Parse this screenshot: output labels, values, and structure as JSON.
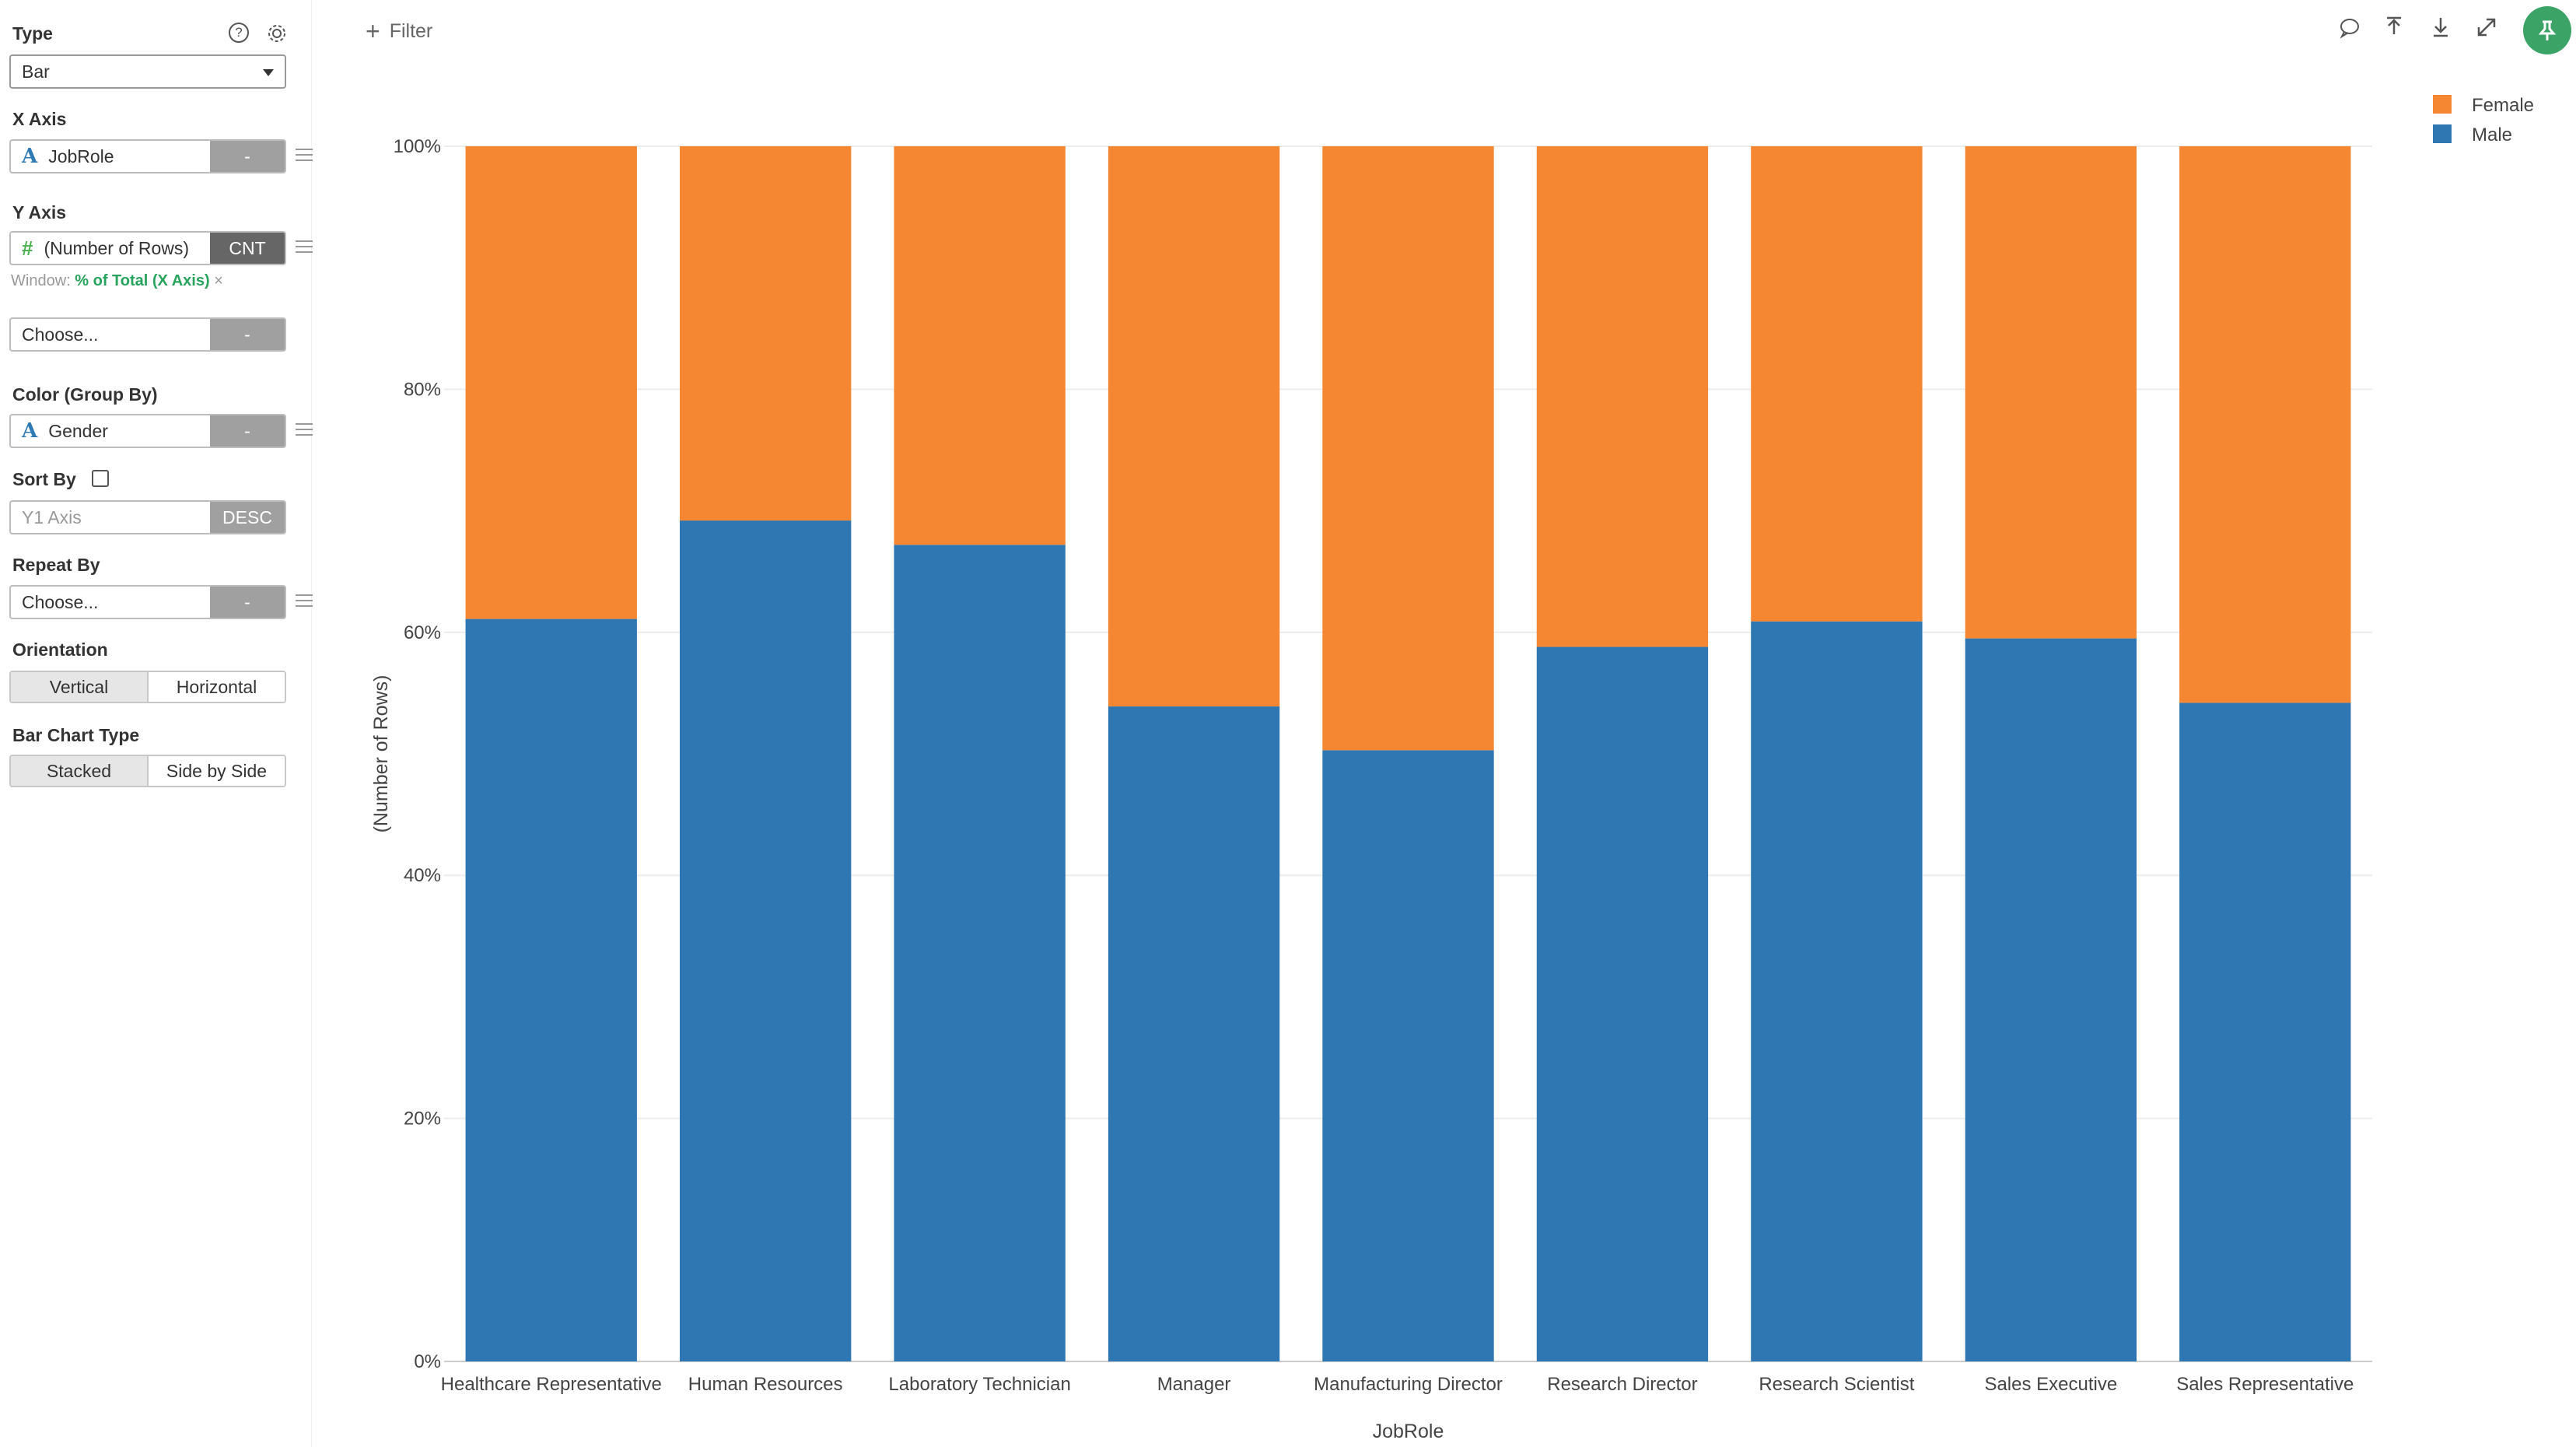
{
  "sidebar": {
    "type_label": "Type",
    "type_value": "Bar",
    "help_icon": "?",
    "x_axis_label": "X Axis",
    "x_axis_value": "JobRole",
    "x_axis_agg": "-",
    "y_axis_label": "Y Axis",
    "y_axis_value": "(Number of Rows)",
    "y_axis_agg": "CNT",
    "window_prefix": "Window:",
    "window_value": "% of Total (X Axis)",
    "window_close": "×",
    "y2_placeholder": "Choose...",
    "y2_agg": "-",
    "color_label": "Color (Group By)",
    "color_value": "Gender",
    "color_agg": "-",
    "sort_label": "Sort By",
    "sort_placeholder": "Y1 Axis",
    "sort_order": "DESC",
    "repeat_label": "Repeat By",
    "repeat_placeholder": "Choose...",
    "repeat_agg": "-",
    "orientation_label": "Orientation",
    "orientation_options": [
      "Vertical",
      "Horizontal"
    ],
    "bar_type_label": "Bar Chart Type",
    "bar_type_options": [
      "Stacked",
      "Side by Side"
    ]
  },
  "header": {
    "filter_plus": "+",
    "filter_label": "Filter"
  },
  "colors": {
    "female": "#f58733",
    "male": "#2f77b2",
    "accent": "#3aa365"
  },
  "chart_data": {
    "type": "bar",
    "stacked": true,
    "categories": [
      "Healthcare Representative",
      "Human Resources",
      "Laboratory Technician",
      "Manager",
      "Manufacturing Director",
      "Research Director",
      "Research Scientist",
      "Sales Executive",
      "Sales Representative"
    ],
    "series": [
      {
        "name": "Male",
        "values": [
          61.1,
          69.2,
          67.2,
          53.9,
          50.3,
          58.8,
          60.9,
          59.5,
          54.2
        ]
      },
      {
        "name": "Female",
        "values": [
          38.9,
          30.8,
          32.8,
          46.1,
          49.7,
          41.2,
          39.1,
          40.5,
          45.8
        ]
      }
    ],
    "legend": [
      "Female",
      "Male"
    ],
    "legend_position": "top-right",
    "xlabel": "JobRole",
    "ylabel": "(Number of Rows)",
    "ylim": [
      0,
      100
    ],
    "yticks": [
      "0%",
      "20%",
      "40%",
      "60%",
      "80%",
      "100%"
    ],
    "grid": true
  }
}
